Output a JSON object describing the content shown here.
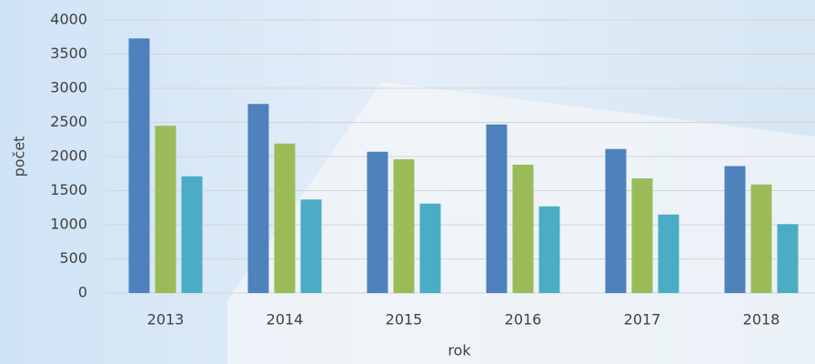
{
  "chart_data": {
    "type": "bar",
    "x_label": "rok",
    "y_label": "počet",
    "categories": [
      "2013",
      "2014",
      "2015",
      "2016",
      "2017",
      "2018"
    ],
    "series": [
      {
        "color": "#4f81bd",
        "values": [
          3730,
          2770,
          2070,
          2470,
          2110,
          1860
        ]
      },
      {
        "color": "#9bbb59",
        "values": [
          2450,
          2190,
          1960,
          1880,
          1680,
          1590
        ]
      },
      {
        "color": "#4bacc6",
        "values": [
          1710,
          1370,
          1310,
          1270,
          1150,
          1010
        ]
      }
    ],
    "ylim": [
      0,
      4000
    ],
    "yticks": [
      0,
      500,
      1000,
      1500,
      2000,
      2500,
      3000,
      3500,
      4000
    ],
    "grid": true
  }
}
